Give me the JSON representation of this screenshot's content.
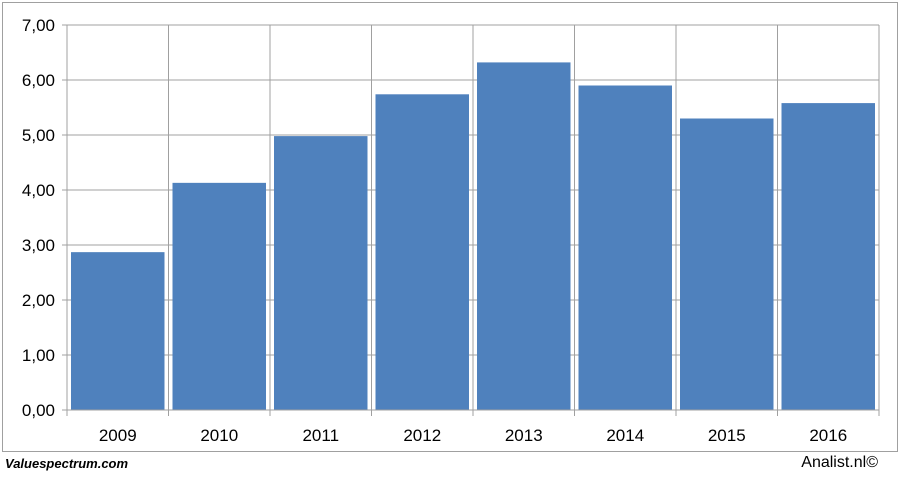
{
  "chart_data": {
    "type": "bar",
    "categories": [
      "2009",
      "2010",
      "2011",
      "2012",
      "2013",
      "2014",
      "2015",
      "2016"
    ],
    "values": [
      2.87,
      4.13,
      4.98,
      5.74,
      6.32,
      5.9,
      5.3,
      5.58
    ],
    "ylim": [
      0,
      7
    ],
    "yticks": [
      "0,00",
      "1,00",
      "2,00",
      "3,00",
      "4,00",
      "5,00",
      "6,00",
      "7,00"
    ],
    "grid": true,
    "bar_color": "#4f81bd",
    "grid_color": "#a0a0a0"
  },
  "footer": {
    "left": "Valuespectrum.com",
    "right": "Analist.nl©"
  }
}
